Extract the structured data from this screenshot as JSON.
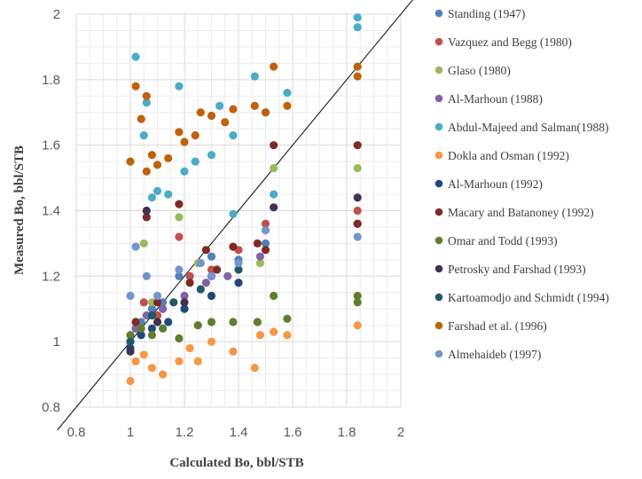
{
  "chart_data": {
    "type": "scatter",
    "xlabel": "Calculated Bo, bbl/STB",
    "ylabel": "Measured Bo, bbl/STB",
    "xlim": [
      0.8,
      2
    ],
    "ylim": [
      0.8,
      2
    ],
    "x_ticks": [
      "0.8",
      "1",
      "1.2",
      "1.4",
      "1.6",
      "1.8",
      "2"
    ],
    "y_ticks": [
      "0.8",
      "1",
      "1.2",
      "1.4",
      "1.6",
      "1.8",
      "2"
    ],
    "grid": true,
    "legend_position": "right",
    "reference_line": [
      [
        0.8,
        0.8
      ],
      [
        2,
        2
      ]
    ],
    "series": [
      {
        "name": "Standing (1947)",
        "color": "#4f81bd",
        "points": [
          [
            1.0,
            1.0
          ],
          [
            1.04,
            1.06
          ],
          [
            1.08,
            1.1
          ],
          [
            1.12,
            1.12
          ],
          [
            1.18,
            1.2
          ],
          [
            1.22,
            1.2
          ],
          [
            1.3,
            1.26
          ],
          [
            1.4,
            1.25
          ],
          [
            1.5,
            1.3
          ]
        ]
      },
      {
        "name": "Vazquez and Begg (1980)",
        "color": "#c0504d",
        "points": [
          [
            1.02,
            1.04
          ],
          [
            1.05,
            1.12
          ],
          [
            1.1,
            1.08
          ],
          [
            1.18,
            1.32
          ],
          [
            1.22,
            1.2
          ],
          [
            1.3,
            1.22
          ],
          [
            1.4,
            1.28
          ],
          [
            1.5,
            1.36
          ],
          [
            1.84,
            1.4
          ]
        ]
      },
      {
        "name": "Glaso (1980)",
        "color": "#9bbb59",
        "points": [
          [
            1.02,
            1.06
          ],
          [
            1.05,
            1.3
          ],
          [
            1.08,
            1.12
          ],
          [
            1.12,
            1.1
          ],
          [
            1.18,
            1.38
          ],
          [
            1.25,
            1.24
          ],
          [
            1.32,
            1.22
          ],
          [
            1.4,
            1.18
          ],
          [
            1.48,
            1.24
          ],
          [
            1.53,
            1.53
          ],
          [
            1.84,
            1.53
          ]
        ]
      },
      {
        "name": "Al-Marhoun (1988)",
        "color": "#8064a2",
        "points": [
          [
            1.02,
            1.04
          ],
          [
            1.06,
            1.08
          ],
          [
            1.12,
            1.1
          ],
          [
            1.2,
            1.14
          ],
          [
            1.28,
            1.18
          ],
          [
            1.36,
            1.2
          ],
          [
            1.48,
            1.26
          ],
          [
            1.84,
            1.36
          ]
        ]
      },
      {
        "name": "Abdul-Majeed and Salman(1988)",
        "color": "#4bacc6",
        "points": [
          [
            1.02,
            1.87
          ],
          [
            1.05,
            1.63
          ],
          [
            1.06,
            1.73
          ],
          [
            1.08,
            1.44
          ],
          [
            1.1,
            1.46
          ],
          [
            1.14,
            1.45
          ],
          [
            1.18,
            1.78
          ],
          [
            1.2,
            1.52
          ],
          [
            1.24,
            1.55
          ],
          [
            1.3,
            1.57
          ],
          [
            1.33,
            1.72
          ],
          [
            1.38,
            1.63
          ],
          [
            1.38,
            1.39
          ],
          [
            1.46,
            1.81
          ],
          [
            1.5,
            1.7
          ],
          [
            1.53,
            1.45
          ],
          [
            1.58,
            1.76
          ],
          [
            1.84,
            1.99
          ],
          [
            1.84,
            1.96
          ]
        ]
      },
      {
        "name": "Dokla and Osman (1992)",
        "color": "#f79646",
        "points": [
          [
            1.0,
            0.88
          ],
          [
            1.02,
            0.94
          ],
          [
            1.05,
            0.96
          ],
          [
            1.08,
            0.92
          ],
          [
            1.12,
            0.9
          ],
          [
            1.18,
            0.94
          ],
          [
            1.22,
            0.98
          ],
          [
            1.25,
            0.94
          ],
          [
            1.3,
            1.0
          ],
          [
            1.38,
            0.97
          ],
          [
            1.46,
            0.92
          ],
          [
            1.48,
            1.02
          ],
          [
            1.53,
            1.03
          ],
          [
            1.58,
            1.02
          ],
          [
            1.84,
            1.05
          ]
        ]
      },
      {
        "name": "Al-Marhoun (1992)",
        "color": "#1f497d",
        "points": [
          [
            1.0,
            0.98
          ],
          [
            1.04,
            1.02
          ],
          [
            1.08,
            1.04
          ],
          [
            1.14,
            1.06
          ],
          [
            1.2,
            1.1
          ],
          [
            1.3,
            1.14
          ],
          [
            1.4,
            1.18
          ]
        ]
      },
      {
        "name": "Macary and Batanoney (1992)",
        "color": "#7f2a26",
        "points": [
          [
            1.02,
            1.06
          ],
          [
            1.06,
            1.38
          ],
          [
            1.1,
            1.12
          ],
          [
            1.18,
            1.42
          ],
          [
            1.22,
            1.18
          ],
          [
            1.28,
            1.28
          ],
          [
            1.32,
            1.22
          ],
          [
            1.38,
            1.29
          ],
          [
            1.47,
            1.3
          ],
          [
            1.5,
            1.28
          ],
          [
            1.53,
            1.6
          ],
          [
            1.84,
            1.6
          ],
          [
            1.84,
            1.36
          ]
        ]
      },
      {
        "name": "Omar and Todd (1993)",
        "color": "#5f7f2f",
        "points": [
          [
            1.0,
            1.02
          ],
          [
            1.04,
            1.04
          ],
          [
            1.08,
            1.02
          ],
          [
            1.12,
            1.04
          ],
          [
            1.18,
            1.01
          ],
          [
            1.25,
            1.05
          ],
          [
            1.3,
            1.06
          ],
          [
            1.38,
            1.06
          ],
          [
            1.47,
            1.06
          ],
          [
            1.53,
            1.14
          ],
          [
            1.58,
            1.07
          ],
          [
            1.84,
            1.14
          ],
          [
            1.84,
            1.12
          ]
        ]
      },
      {
        "name": "Petrosky and Farshad (1993)",
        "color": "#403152",
        "points": [
          [
            1.0,
            0.97
          ],
          [
            1.06,
            1.4
          ],
          [
            1.1,
            1.06
          ],
          [
            1.2,
            1.12
          ],
          [
            1.3,
            1.2
          ],
          [
            1.53,
            1.41
          ],
          [
            1.84,
            1.44
          ]
        ]
      },
      {
        "name": "Kartoamodjo and Schmidt (1994)",
        "color": "#215967",
        "points": [
          [
            1.0,
            1.0
          ],
          [
            1.08,
            1.08
          ],
          [
            1.16,
            1.12
          ],
          [
            1.26,
            1.16
          ],
          [
            1.4,
            1.22
          ]
        ]
      },
      {
        "name": "Farshad et al. (1996)",
        "color": "#c0620c",
        "points": [
          [
            1.0,
            1.55
          ],
          [
            1.02,
            1.78
          ],
          [
            1.04,
            1.68
          ],
          [
            1.06,
            1.75
          ],
          [
            1.06,
            1.52
          ],
          [
            1.08,
            1.57
          ],
          [
            1.1,
            1.54
          ],
          [
            1.14,
            1.56
          ],
          [
            1.18,
            1.64
          ],
          [
            1.2,
            1.61
          ],
          [
            1.24,
            1.63
          ],
          [
            1.26,
            1.7
          ],
          [
            1.3,
            1.69
          ],
          [
            1.35,
            1.67
          ],
          [
            1.38,
            1.71
          ],
          [
            1.46,
            1.72
          ],
          [
            1.5,
            1.7
          ],
          [
            1.53,
            1.84
          ],
          [
            1.58,
            1.72
          ],
          [
            1.84,
            1.84
          ],
          [
            1.84,
            1.81
          ]
        ]
      },
      {
        "name": "Almehaideb (1997)",
        "color": "#7394cc",
        "points": [
          [
            1.0,
            1.14
          ],
          [
            1.02,
            1.29
          ],
          [
            1.06,
            1.2
          ],
          [
            1.1,
            1.14
          ],
          [
            1.18,
            1.22
          ],
          [
            1.26,
            1.24
          ],
          [
            1.3,
            1.2
          ],
          [
            1.4,
            1.24
          ],
          [
            1.5,
            1.34
          ],
          [
            1.84,
            1.32
          ]
        ]
      }
    ]
  }
}
